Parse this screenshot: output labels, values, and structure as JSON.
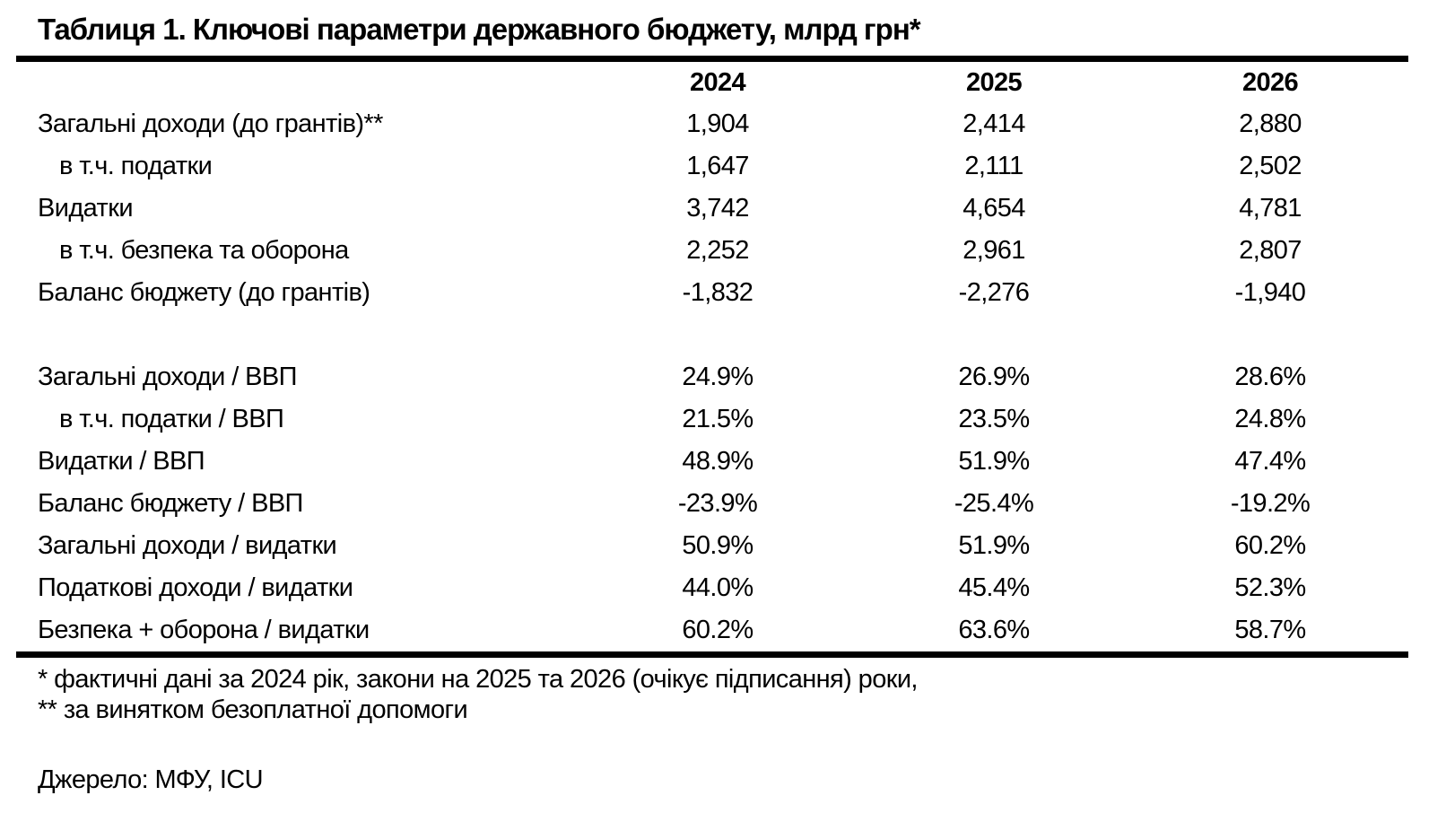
{
  "title": "Таблиця 1. Ключові параметри державного бюджету, млрд грн*",
  "table": {
    "year_headers": [
      "2024",
      "2025",
      "2026"
    ],
    "rows": [
      {
        "label": "Загальні доходи (до грантів)**",
        "indent": false,
        "values": [
          "1,904",
          "2,414",
          "2,880"
        ]
      },
      {
        "label": "в т.ч. податки",
        "indent": true,
        "values": [
          "1,647",
          "2,111",
          "2,502"
        ]
      },
      {
        "label": "Видатки",
        "indent": false,
        "values": [
          "3,742",
          "4,654",
          "4,781"
        ]
      },
      {
        "label": "в т.ч. безпека та оборона",
        "indent": true,
        "values": [
          "2,252",
          "2,961",
          "2,807"
        ]
      },
      {
        "label": "Баланс бюджету (до грантів)",
        "indent": false,
        "values": [
          "-1,832",
          "-2,276",
          "-1,940"
        ]
      },
      {
        "spacer": true
      },
      {
        "label": "Загальні доходи / ВВП",
        "indent": false,
        "values": [
          "24.9%",
          "26.9%",
          "28.6%"
        ]
      },
      {
        "label": "в т.ч. податки / ВВП",
        "indent": true,
        "values": [
          "21.5%",
          "23.5%",
          "24.8%"
        ]
      },
      {
        "label": "Видатки / ВВП",
        "indent": false,
        "values": [
          "48.9%",
          "51.9%",
          "47.4%"
        ]
      },
      {
        "label": "Баланс бюджету / ВВП",
        "indent": false,
        "values": [
          "-23.9%",
          "-25.4%",
          "-19.2%"
        ]
      },
      {
        "label": "Загальні доходи / видатки",
        "indent": false,
        "values": [
          "50.9%",
          "51.9%",
          "60.2%"
        ]
      },
      {
        "label": "Податкові доходи / видатки",
        "indent": false,
        "values": [
          "44.0%",
          "45.4%",
          "52.3%"
        ]
      },
      {
        "label": "Безпека + оборона / видатки",
        "indent": false,
        "values": [
          "60.2%",
          "63.6%",
          "58.7%"
        ]
      }
    ]
  },
  "footnotes": [
    "* фактичні дані за 2024 рік, закони на 2025 та 2026 (очікує підписання) роки,",
    "** за винятком безоплатної допомоги"
  ],
  "source": "Джерело: МФУ, ICU",
  "colors": {
    "text": "#000000",
    "background": "#ffffff",
    "rule": "#000000"
  }
}
